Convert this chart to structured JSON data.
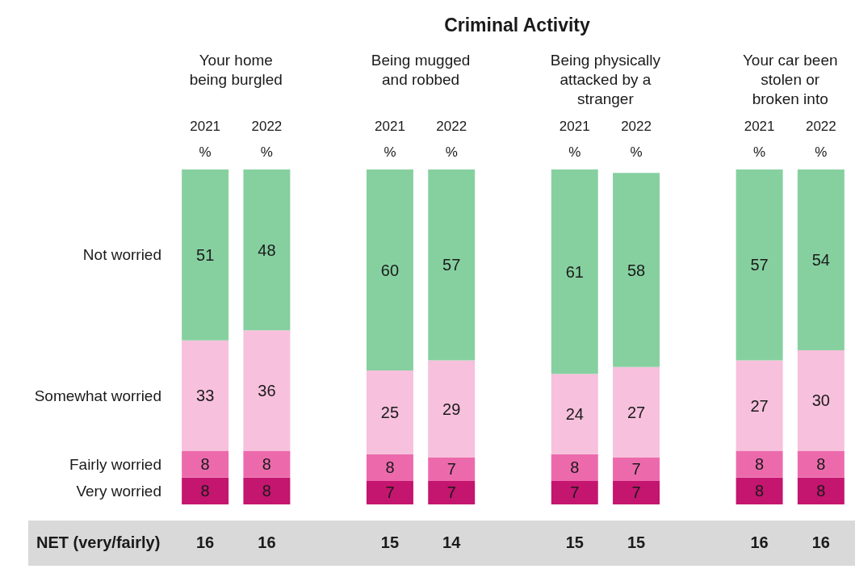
{
  "chart_data": [
    {
      "type": "bar",
      "stacked": true,
      "title": "Criminal Activity",
      "categories": [
        "2021\n%",
        "2022\n%",
        null,
        "2021\n%",
        "2022\n%",
        null,
        "2021\n%",
        "2022\n%",
        null,
        "2021\n%",
        "2022\n%"
      ],
      "series": [
        {
          "name": "Very worried",
          "color": "#c4156f",
          "values": [
            8,
            8,
            null,
            7,
            7,
            null,
            7,
            7,
            null,
            8,
            8
          ]
        },
        {
          "name": "Fairly worried",
          "color": "#ec6aac",
          "values": [
            8,
            8,
            null,
            8,
            7,
            null,
            8,
            7,
            null,
            8,
            8
          ]
        },
        {
          "name": "Somewhat worried",
          "color": "#f7c0dc",
          "values": [
            33,
            36,
            null,
            25,
            29,
            null,
            24,
            27,
            null,
            27,
            30
          ]
        },
        {
          "name": "Not worried",
          "color": "#86d0a0",
          "values": [
            51,
            48,
            null,
            60,
            57,
            null,
            61,
            58,
            null,
            57,
            54
          ]
        }
      ],
      "data_labels": true,
      "legend": false,
      "annotations": [
        "Your home\nbeing burgled",
        "Being mugged\nand robbed",
        "Being physically\nattacked by a\nstranger",
        "Your car been\nstolen or\nbroken into"
      ]
    },
    {
      "type": "other",
      "annotations": [
        "NET (very/fairly)",
        "16",
        "16",
        "15",
        "14",
        "15",
        "15",
        "16",
        "16"
      ]
    }
  ]
}
